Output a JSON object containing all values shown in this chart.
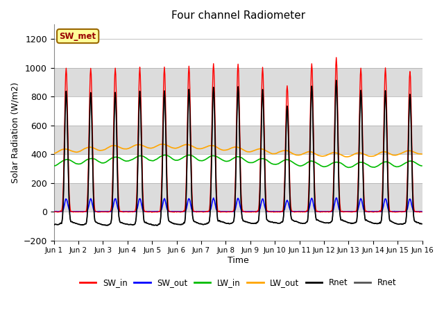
{
  "title": "Four channel Radiometer",
  "xlabel": "Time",
  "ylabel": "Solar Radiation (W/m2)",
  "ylim": [
    -200,
    1300
  ],
  "yticks": [
    -200,
    0,
    200,
    400,
    600,
    800,
    1000,
    1200
  ],
  "annotation_text": "SW_met",
  "annotation_bg": "#FFFF99",
  "annotation_border": "#996600",
  "xtick_labels": [
    "Jun 1",
    "Jun 2",
    "Jun 3",
    "Jun 4",
    "Jun 5",
    "Jun 6",
    "Jun 7",
    "Jun 8",
    "Jun 9",
    "Jun 10",
    "Jun 11",
    "Jun 12",
    "Jun 13",
    "Jun 14",
    "Jun 15",
    "Jun 16"
  ],
  "colors": {
    "SW_in": "#FF0000",
    "SW_out": "#0000FF",
    "LW_in": "#00BB00",
    "LW_out": "#FFA500",
    "Rnet1": "#000000",
    "Rnet2": "#555555"
  },
  "band_colors": [
    "#FFFFFF",
    "#DCDCDC"
  ],
  "num_days": 15,
  "pts_per_hour": 2
}
